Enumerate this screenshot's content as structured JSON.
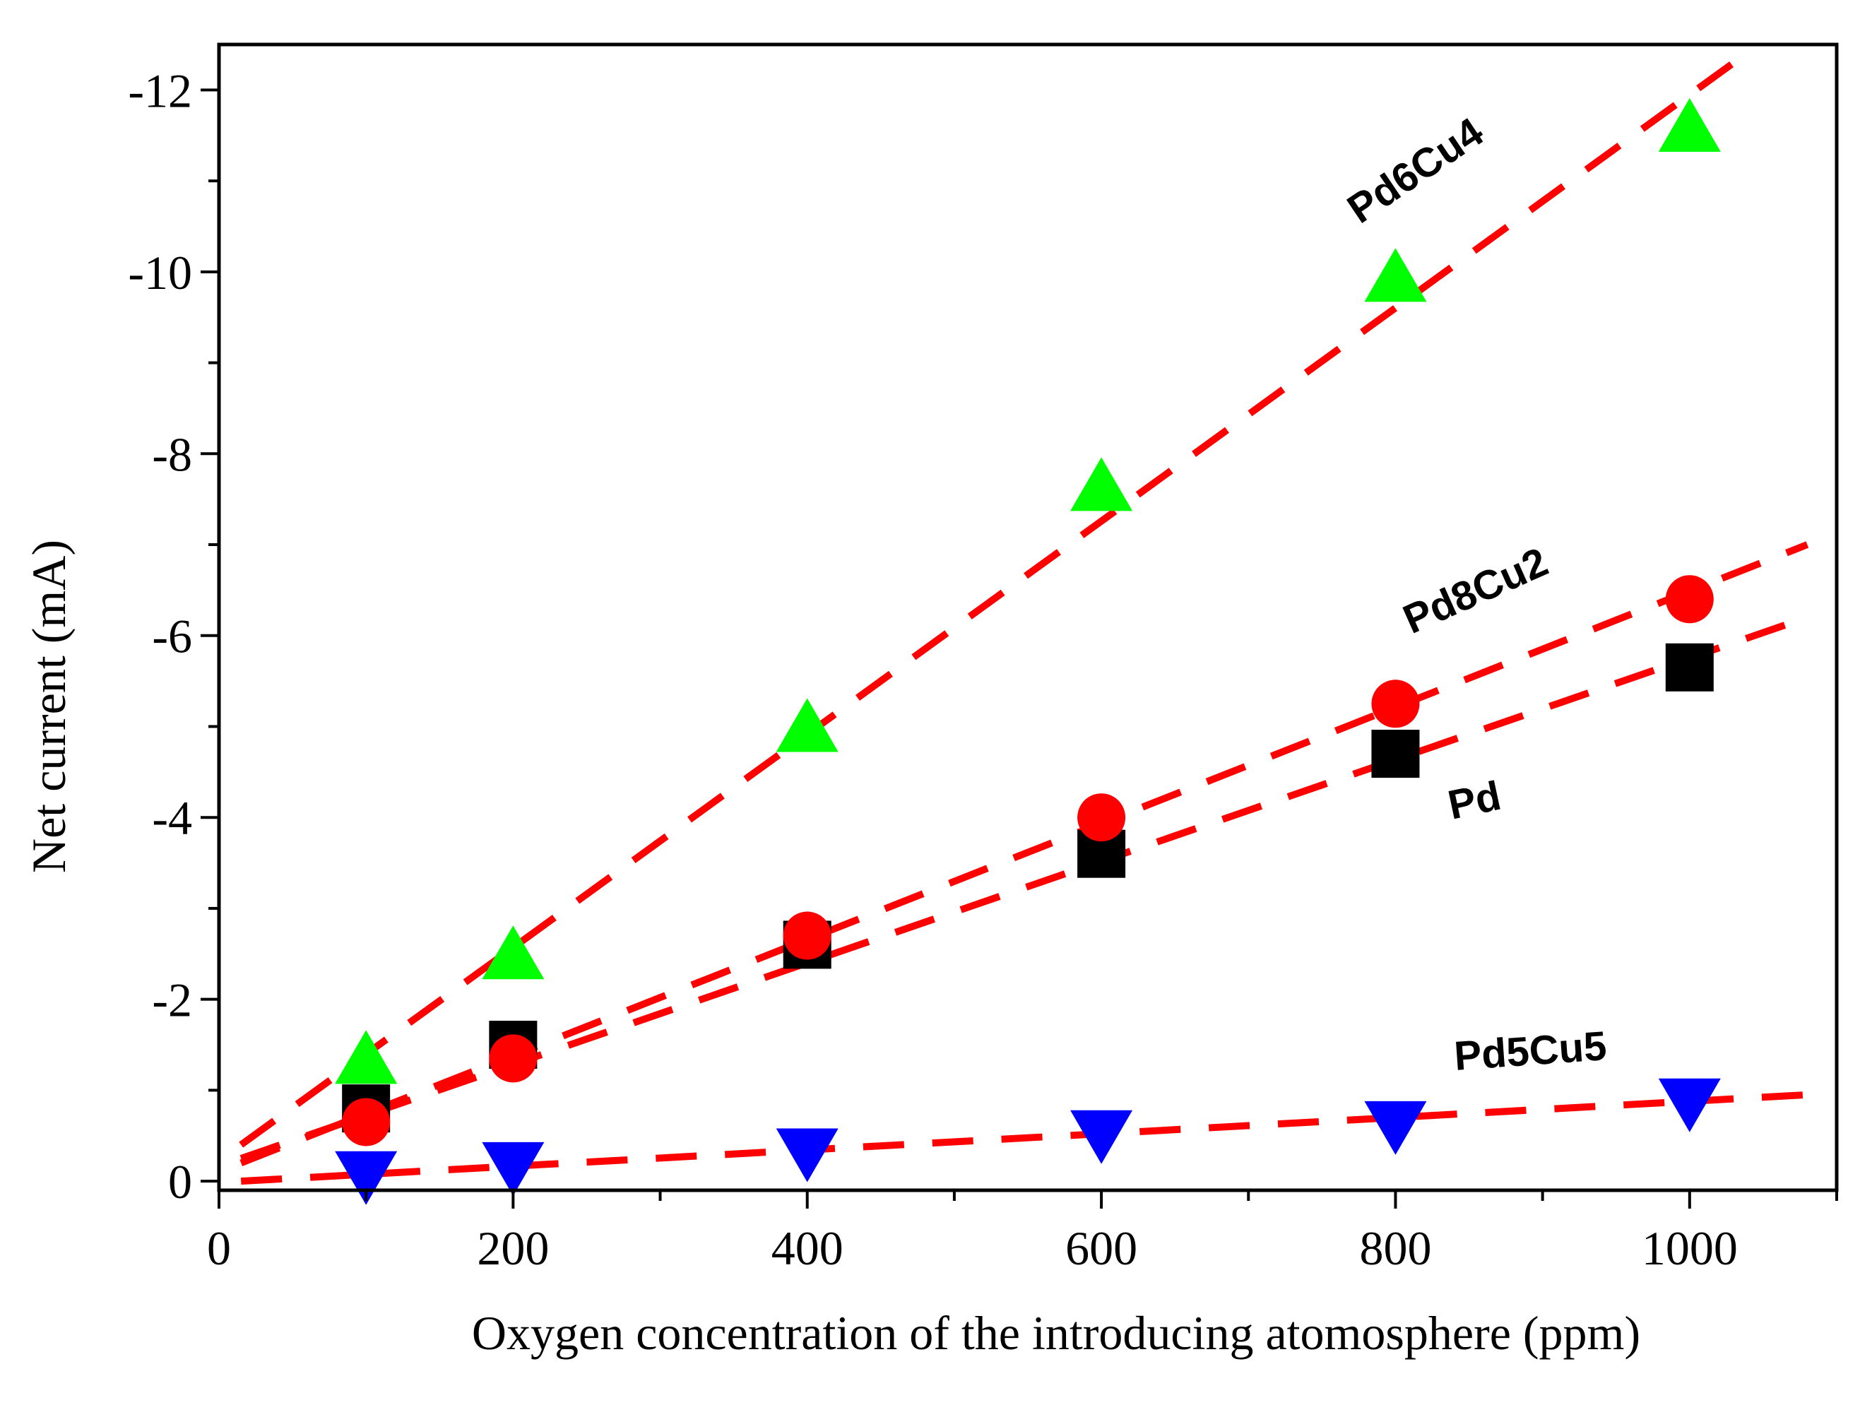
{
  "chart_data": {
    "type": "scatter",
    "title": "",
    "xlabel": "Oxygen concentration of the introducing atomosphere (ppm)",
    "ylabel": "Net current (mA)",
    "xlim": [
      0,
      1100
    ],
    "ylim": [
      0.1,
      -12.5
    ],
    "x_ticks": [
      0,
      200,
      400,
      600,
      800,
      1000
    ],
    "y_ticks": [
      0,
      -2,
      -4,
      -6,
      -8,
      -10,
      -12
    ],
    "x_tick_labels": [
      "0",
      "200",
      "400",
      "600",
      "800",
      "1000"
    ],
    "y_tick_labels": [
      "0",
      "-2",
      "-4",
      "-6",
      "-8",
      "-10",
      "-12"
    ],
    "x_minor_step": 100,
    "y_minor_step": 1,
    "grid": false,
    "fit_line_color": "#ff0000",
    "series": [
      {
        "name": "Pd",
        "label": "Pd",
        "marker": "square",
        "color": "#000000",
        "x": [
          100,
          200,
          400,
          600,
          800,
          1000
        ],
        "y": [
          -0.8,
          -1.5,
          -2.6,
          -3.6,
          -4.7,
          -5.65
        ],
        "fit": {
          "x": [
            15,
            1080
          ],
          "y": [
            -0.25,
            -6.2
          ]
        }
      },
      {
        "name": "Pd8Cu2",
        "label": "Pd8Cu2",
        "marker": "circle",
        "color": "#ff0000",
        "x": [
          100,
          200,
          400,
          600,
          800,
          1000
        ],
        "y": [
          -0.65,
          -1.35,
          -2.7,
          -4.0,
          -5.25,
          -6.4
        ],
        "fit": {
          "x": [
            15,
            1080
          ],
          "y": [
            -0.2,
            -7.0
          ]
        }
      },
      {
        "name": "Pd6Cu4",
        "label": "Pd6Cu4",
        "marker": "triangle-up",
        "color": "#00ff00",
        "x": [
          100,
          200,
          400,
          600,
          800,
          1000
        ],
        "y": [
          -1.35,
          -2.5,
          -5.0,
          -7.65,
          -9.95,
          -11.6
        ],
        "fit": {
          "x": [
            15,
            1030
          ],
          "y": [
            -0.4,
            -12.3
          ]
        }
      },
      {
        "name": "Pd5Cu5",
        "label": "Pd5Cu5",
        "marker": "triangle-down",
        "color": "#0000ff",
        "x": [
          100,
          200,
          400,
          600,
          800,
          1000
        ],
        "y": [
          -0.05,
          -0.15,
          -0.3,
          -0.5,
          -0.6,
          -0.85
        ],
        "fit": {
          "x": [
            15,
            1080
          ],
          "y": [
            0.0,
            -0.95
          ]
        }
      }
    ]
  }
}
